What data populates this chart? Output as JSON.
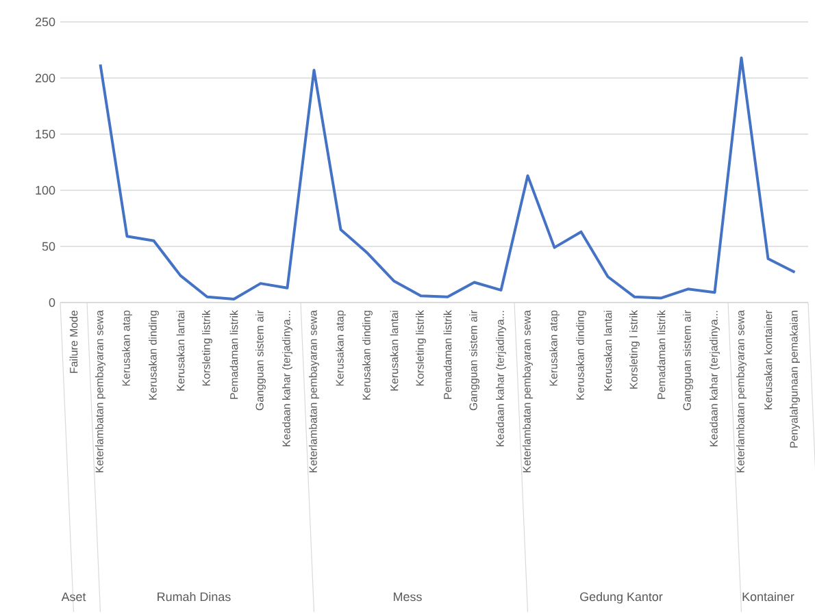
{
  "chart_data": {
    "type": "line",
    "categories": [
      "Failure Mode",
      "Keterlambatan pembayaran sewa",
      "Kerusakan atap",
      "Kerusakan dinding",
      "Kerusakan lantai",
      "Korsleting listrik",
      "Pemadaman listrik",
      "Gangguan sistem air",
      "Keadaan kahar (terjadinya...",
      "Keterlambatan pembayaran sewa",
      "Kerusakan atap",
      "Kerusakan dinding",
      "Kerusakan lantai",
      "Korsleting listrik",
      "Pemadaman listrik",
      "Gangguan sistem air",
      "Keadaan kahar (terjadinya...",
      "Keterlambatan pembayaran sewa",
      "Kerusakan atap",
      "Kerusakan dinding",
      "Kerusakan lantai",
      "Korsleting l istrik",
      "Pemadaman listrik",
      "Gangguan sistem air",
      "Keadaan kahar (terjadinya...",
      "Keterlambatan pembayaran sewa",
      "Kerusakan kontainer",
      "Penyalahgunaan pemakaian"
    ],
    "values": [
      null,
      212,
      59,
      55,
      24,
      5,
      3,
      17,
      13,
      207,
      65,
      44,
      19,
      6,
      5,
      18,
      11,
      113,
      49,
      63,
      23,
      5,
      4,
      12,
      9,
      218,
      39,
      27
    ],
    "color": "#4472c4",
    "ylim": [
      0,
      250
    ],
    "yticks": [
      0,
      50,
      100,
      150,
      200,
      250
    ],
    "grid": "y",
    "annotations": [
      "Aset",
      "Rumah Dinas",
      "Mess",
      "Gedung Kantor",
      "Kontainer"
    ]
  }
}
